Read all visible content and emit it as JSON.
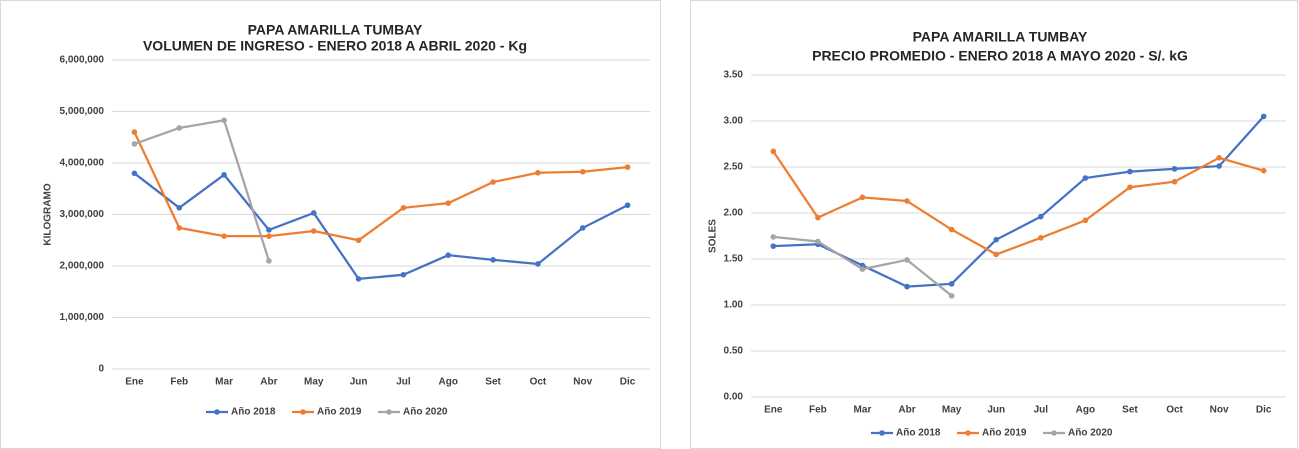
{
  "chart_data": [
    {
      "type": "line",
      "title": "PAPA AMARILLA TUMBAY",
      "subtitle": "VOLUMEN DE INGRESO - ENERO 2018 A ABRIL 2020 - Kg",
      "y_label": "KILOGRAMO",
      "categories": [
        "Ene",
        "Feb",
        "Mar",
        "Abr",
        "May",
        "Jun",
        "Jul",
        "Ago",
        "Set",
        "Oct",
        "Nov",
        "Dic"
      ],
      "series": [
        {
          "name": "Año 2018",
          "color": "#4472c4",
          "values": [
            3800000,
            3130000,
            3770000,
            2700000,
            3030000,
            1750000,
            1830000,
            2210000,
            2120000,
            2040000,
            2740000,
            3180000
          ]
        },
        {
          "name": "Año 2019",
          "color": "#ed7d31",
          "values": [
            4600000,
            2740000,
            2580000,
            2580000,
            2680000,
            2500000,
            3130000,
            3220000,
            3630000,
            3810000,
            3830000,
            3920000
          ]
        },
        {
          "name": "Año 2020",
          "color": "#a5a5a5",
          "values": [
            4370000,
            4680000,
            4830000,
            2100000,
            null,
            null,
            null,
            null,
            null,
            null,
            null,
            null
          ]
        }
      ],
      "ylim": [
        0,
        6000000
      ],
      "yticks": [
        0,
        {
          "value": 1000000,
          "label": "1,000,000"
        },
        {
          "value": 2000000,
          "label": "2,000,000"
        },
        {
          "value": 3000000,
          "label": "3,000,000"
        },
        {
          "value": 4000000,
          "label": "4,000,000"
        },
        {
          "value": 5000000,
          "label": "5,000,000"
        },
        {
          "value": 6000000,
          "label": "6,000,000"
        }
      ],
      "grid": true,
      "legend": "bottom"
    },
    {
      "type": "line",
      "title": "PAPA AMARILLA TUMBAY",
      "subtitle": "PRECIO PROMEDIO - ENERO 2018 A MAYO 2020 - S/. kG",
      "y_label": "SOLES",
      "categories": [
        "Ene",
        "Feb",
        "Mar",
        "Abr",
        "May",
        "Jun",
        "Jul",
        "Ago",
        "Set",
        "Oct",
        "Nov",
        "Dic"
      ],
      "series": [
        {
          "name": "Año 2018",
          "color": "#4472c4",
          "values": [
            1.64,
            1.66,
            1.43,
            1.2,
            1.23,
            1.71,
            1.96,
            2.38,
            2.45,
            2.48,
            2.51,
            3.05
          ]
        },
        {
          "name": "Año 2019",
          "color": "#ed7d31",
          "values": [
            2.67,
            1.95,
            2.17,
            2.13,
            1.82,
            1.55,
            1.73,
            1.92,
            2.28,
            2.34,
            2.6,
            2.46
          ]
        },
        {
          "name": "Año 2020",
          "color": "#a5a5a5",
          "values": [
            1.74,
            1.69,
            1.39,
            1.49,
            1.1,
            null,
            null,
            null,
            null,
            null,
            null,
            null
          ]
        }
      ],
      "ylim": [
        0,
        3.5
      ],
      "yticks": [
        {
          "value": 0,
          "label": "0.00"
        },
        {
          "value": 0.5,
          "label": "0.50"
        },
        {
          "value": 1,
          "label": "1.00"
        },
        {
          "value": 1.5,
          "label": "1.50"
        },
        {
          "value": 2,
          "label": "2.00"
        },
        {
          "value": 2.5,
          "label": "2.50"
        },
        {
          "value": 3,
          "label": "3.00"
        },
        {
          "value": 3.5,
          "label": "3.50"
        }
      ],
      "grid": true,
      "legend": "bottom"
    }
  ]
}
